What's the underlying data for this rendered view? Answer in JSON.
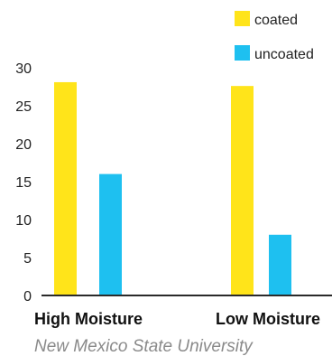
{
  "chart_data": {
    "type": "bar",
    "categories": [
      "High Moisture",
      "Low Moisture"
    ],
    "series": [
      {
        "name": "coated",
        "values": [
          28.1,
          27.6
        ],
        "color": "#FFE41A"
      },
      {
        "name": "uncoated",
        "values": [
          16.0,
          8.0
        ],
        "color": "#1EC0F0"
      }
    ],
    "ylim": [
      0,
      30
    ],
    "yticks": [
      0,
      5,
      10,
      15,
      20,
      25,
      30
    ],
    "grid": false,
    "legend_position": "top-right"
  },
  "source_note": "New Mexico State University"
}
